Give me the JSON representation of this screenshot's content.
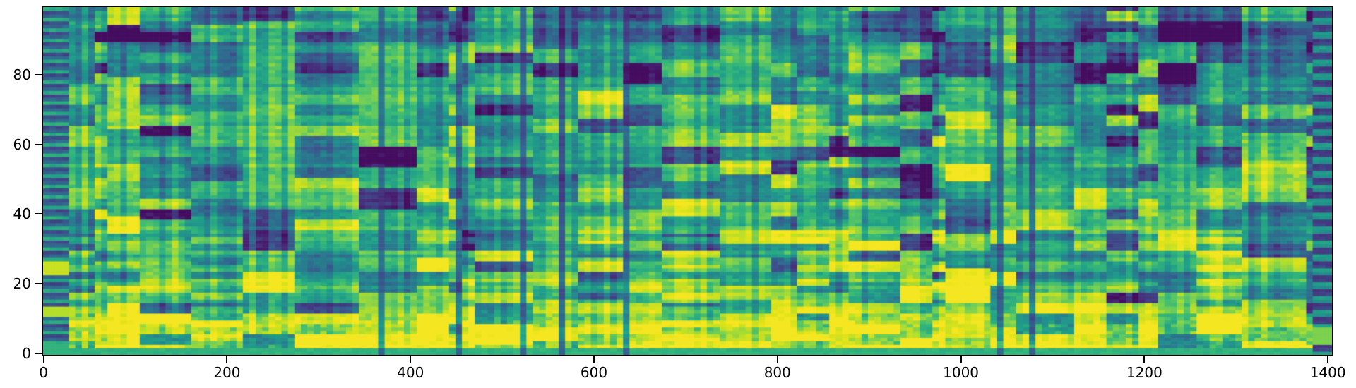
{
  "figure": {
    "background": "#ffffff",
    "axis_color": "#000000",
    "tick_label_color": "#000000"
  },
  "chart_data": {
    "type": "heatmap",
    "variant": "audio-spectrogram",
    "title": "",
    "xlabel": "",
    "ylabel": "",
    "legend": "none",
    "grid": false,
    "x_range": [
      -0.5,
      1404.5
    ],
    "y_range": [
      -0.5,
      99.5
    ],
    "x_ticks": [
      0,
      200,
      400,
      600,
      800,
      1000,
      1200,
      1400
    ],
    "y_ticks": [
      0,
      20,
      40,
      60,
      80
    ],
    "n_time_frames": 1405,
    "n_freq_bins": 100,
    "colormap": {
      "name": "viridis",
      "stops": [
        [
          0.0,
          "#440154"
        ],
        [
          0.1,
          "#482878"
        ],
        [
          0.2,
          "#3e4a89"
        ],
        [
          0.3,
          "#31688e"
        ],
        [
          0.4,
          "#26828e"
        ],
        [
          0.5,
          "#1f9e89"
        ],
        [
          0.6,
          "#35b779"
        ],
        [
          0.7,
          "#6ece58"
        ],
        [
          0.8,
          "#b5de2b"
        ],
        [
          0.9,
          "#dfe318"
        ],
        [
          1.0,
          "#fde725"
        ]
      ]
    },
    "render": {
      "seed": 7,
      "time_cells": 200,
      "freq_profile": [
        [
          0,
          2,
          0.6
        ],
        [
          2,
          12,
          0.74
        ],
        [
          12,
          30,
          0.62
        ],
        [
          30,
          55,
          0.56
        ],
        [
          55,
          80,
          0.53
        ],
        [
          80,
          100,
          0.49
        ]
      ],
      "segment_len_cells": [
        2,
        10
      ],
      "harmonic_region_top": 35,
      "bottom_band_top": 12,
      "bottom_boost": 0.18,
      "dark_columns_x": [
        368,
        447,
        523,
        560,
        633,
        1040,
        1073
      ],
      "intro_stripe_frames": [
        0,
        27
      ],
      "outro_stripe_frames": [
        1384,
        1405
      ]
    }
  }
}
